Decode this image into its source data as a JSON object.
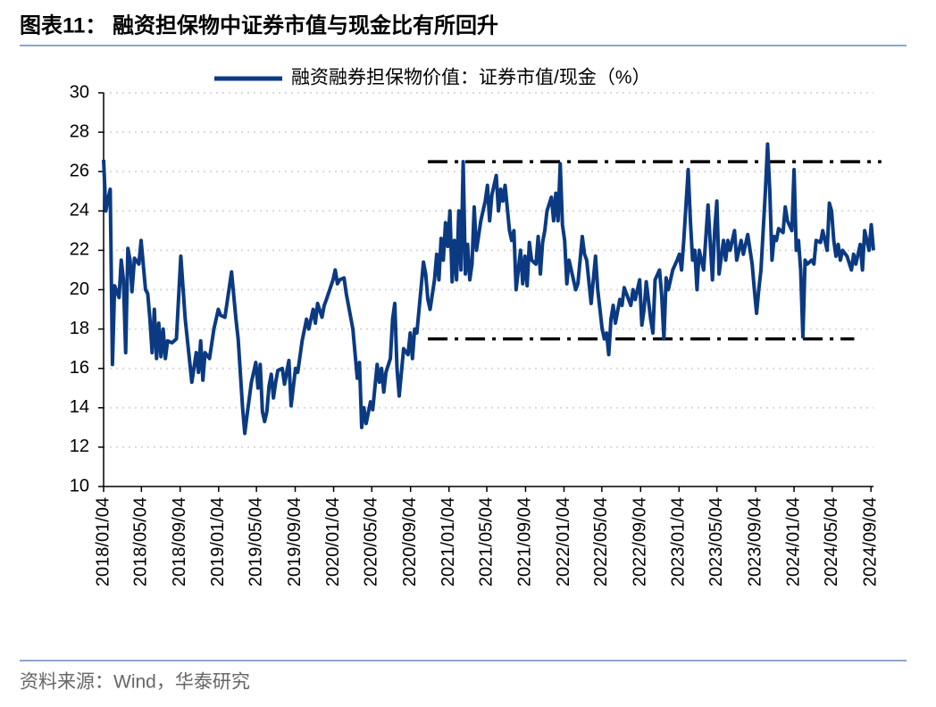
{
  "chart_data": {
    "type": "line",
    "title": "图表11：  融资担保物中证券市值与现金比有所回升",
    "source": "资料来源：Wind，华泰研究",
    "series": [
      {
        "name": "融资融券担保物价值：证券市值/现金（%）",
        "color": "#0b3a82",
        "values": [
          26.6,
          24.0,
          24.6,
          25.1,
          16.2,
          20.2,
          19.6,
          21.5,
          20.5,
          16.8,
          22.1,
          21.5,
          19.9,
          21.6,
          21.3,
          22.5,
          20.0,
          19.8,
          18.5,
          16.8,
          19.0,
          16.5,
          18.3,
          16.6,
          18.0,
          16.5,
          17.4,
          17.3,
          17.5,
          21.7,
          18.5,
          15.3,
          16.8,
          15.8,
          17.4,
          15.4,
          16.8,
          16.5,
          18.0,
          19.0,
          18.7,
          18.6,
          20.9,
          18.5,
          17.5,
          14.0,
          12.7,
          13.6,
          15.3,
          16.3,
          15.0,
          16.2,
          13.8,
          13.3,
          13.8,
          15.1,
          15.7,
          14.5,
          15.3,
          15.9,
          16.0,
          15.2,
          16.4,
          14.1,
          16.0,
          15.8,
          17.4,
          18.5,
          18.0,
          19.0,
          18.3,
          19.3,
          18.6,
          19.2,
          19.5,
          20.5,
          21.0,
          20.3,
          20.5,
          20.6,
          19.8,
          18.0,
          15.5,
          16.3,
          13.0,
          14.0,
          13.2,
          14.3,
          13.9,
          16.2,
          15.3,
          16.0,
          14.8,
          15.8,
          16.5,
          18.5,
          19.3,
          16.0,
          14.6,
          17.0,
          16.7,
          17.8,
          16.5,
          18.0,
          17.8,
          21.4,
          20.8,
          19.5,
          19.0,
          20.5,
          21.8,
          20.5,
          22.6,
          21.5,
          23.4,
          22.2,
          24.0,
          20.4,
          22.5,
          20.5,
          24.0,
          21.0,
          26.5,
          20.8,
          22.3,
          20.5,
          21.3,
          24.2,
          22.0,
          23.5,
          24.5,
          25.3,
          23.5,
          24.8,
          25.8,
          24.0,
          25.1,
          24.5,
          25.3,
          23.0,
          22.5,
          23.0,
          20.0,
          21.0,
          22.0,
          20.3,
          21.7,
          20.2,
          22.4,
          21.5,
          21.3,
          22.7,
          20.8,
          22.4,
          23.0,
          24.0,
          24.7,
          23.5,
          24.9,
          23.5,
          26.4,
          23.3,
          22.5,
          20.3,
          21.5,
          20.0,
          20.3,
          22.7,
          21.8,
          21.5,
          19.3,
          21.7,
          20.0,
          18.0,
          17.5,
          17.8,
          16.7,
          18.5,
          19.2,
          18.3,
          19.5,
          19.2,
          20.1,
          19.8,
          19.2,
          20.0,
          19.5,
          20.5,
          18.2,
          19.0,
          20.4,
          18.5,
          17.8,
          20.5,
          21.0,
          19.7,
          17.5,
          20.6,
          20.0,
          21.0,
          21.5,
          21.8,
          21.0,
          22.5,
          26.1,
          23.5,
          21.5,
          22.0,
          20.0,
          22.0,
          21.0,
          24.3,
          20.5,
          23.0,
          24.5,
          20.8,
          22.5,
          21.5,
          22.5,
          22.0,
          23.0,
          21.5,
          22.5,
          21.8,
          22.8,
          21.3,
          20.0,
          18.8,
          20.0,
          21.0,
          25.0,
          27.4,
          25.0,
          21.5,
          22.7,
          22.5,
          23.1,
          22.9,
          24.2,
          23.5,
          23.0,
          26.1,
          22.0,
          22.5,
          21.0,
          17.6,
          21.5,
          21.3,
          21.5,
          21.3,
          22.5,
          22.4,
          23.0,
          22.0,
          24.4,
          24.0,
          22.5,
          21.7,
          22.3,
          21.5,
          22.0,
          21.7,
          21.0,
          21.8,
          21.3,
          22.3,
          21.0,
          23.0,
          22.0,
          23.3,
          22.0
        ]
      }
    ],
    "x": [
      "2018/01/04",
      "2018/01/11",
      "2018/01/18",
      "2018/01/25",
      "2018/02/01",
      "2018/02/08",
      "2018/02/22",
      "2018/03/01",
      "2018/03/08",
      "2018/03/15",
      "2018/03/22",
      "2018/03/29",
      "2018/04/04",
      "2018/04/12",
      "2018/04/26",
      "2018/05/03",
      "2018/05/17",
      "2018/05/24",
      "2018/05/31",
      "2018/06/07",
      "2018/06/14",
      "2018/06/21",
      "2018/06/28",
      "2018/07/05",
      "2018/07/12",
      "2018/07/19",
      "2018/07/26",
      "2018/08/09",
      "2018/08/23",
      "2018/09/06",
      "2018/09/20",
      "2018/10/11",
      "2018/10/25",
      "2018/11/01",
      "2018/11/08",
      "2018/11/15",
      "2018/11/22",
      "2018/12/06",
      "2018/12/20",
      "2019/01/03",
      "2019/01/10",
      "2019/01/24",
      "2019/02/14",
      "2019/02/28",
      "2019/03/07",
      "2019/03/21",
      "2019/03/28",
      "2019/04/04",
      "2019/04/18",
      "2019/05/02",
      "2019/05/09",
      "2019/05/16",
      "2019/05/23",
      "2019/05/30",
      "2019/06/06",
      "2019/06/13",
      "2019/06/20",
      "2019/06/27",
      "2019/07/04",
      "2019/07/11",
      "2019/07/25",
      "2019/08/01",
      "2019/08/15",
      "2019/08/22",
      "2019/09/05",
      "2019/09/12",
      "2019/09/26",
      "2019/10/10",
      "2019/10/17",
      "2019/10/31",
      "2019/11/07",
      "2019/11/14",
      "2019/11/28",
      "2019/12/05",
      "2019/12/12",
      "2020/01/02",
      "2020/01/09",
      "2020/01/16",
      "2020/01/23",
      "2020/02/06",
      "2020/02/13",
      "2020/03/05",
      "2020/03/19",
      "2020/03/26",
      "2020/04/02",
      "2020/04/09",
      "2020/04/16",
      "2020/04/30",
      "2020/05/07",
      "2020/05/21",
      "2020/05/28",
      "2020/06/04",
      "2020/06/11",
      "2020/06/18",
      "2020/07/02",
      "2020/07/09",
      "2020/07/16",
      "2020/07/23",
      "2020/07/30",
      "2020/08/13",
      "2020/08/27",
      "2020/09/03",
      "2020/09/10",
      "2020/09/17",
      "2020/09/24",
      "2020/10/15",
      "2020/10/22",
      "2020/10/29",
      "2020/11/05",
      "2020/11/19",
      "2020/11/26",
      "2020/12/03",
      "2020/12/10",
      "2020/12/17",
      "2020/12/24",
      "2020/12/31",
      "2021/01/07",
      "2021/01/14",
      "2021/01/21",
      "2021/01/28",
      "2021/02/04",
      "2021/02/11",
      "2021/02/18",
      "2021/02/25",
      "2021/03/04",
      "2021/03/11",
      "2021/03/18",
      "2021/03/25",
      "2021/04/01",
      "2021/04/15",
      "2021/04/29",
      "2021/05/06",
      "2021/05/13",
      "2021/05/20",
      "2021/06/03",
      "2021/06/10",
      "2021/06/17",
      "2021/06/24",
      "2021/07/01",
      "2021/07/15",
      "2021/07/22",
      "2021/07/29",
      "2021/08/05",
      "2021/08/12",
      "2021/08/19",
      "2021/08/26",
      "2021/09/02",
      "2021/09/09",
      "2021/09/16",
      "2021/09/23",
      "2021/10/07",
      "2021/10/14",
      "2021/10/21",
      "2021/10/28",
      "2021/11/04",
      "2021/11/11",
      "2021/11/25",
      "2021/12/02",
      "2021/12/09",
      "2021/12/16",
      "2021/12/23",
      "2021/12/30",
      "2022/01/06",
      "2022/01/13",
      "2022/01/20",
      "2022/02/10",
      "2022/02/17",
      "2022/03/03",
      "2022/03/10",
      "2022/03/17",
      "2022/03/31",
      "2022/04/14",
      "2022/04/21",
      "2022/05/05",
      "2022/05/12",
      "2022/05/19",
      "2022/05/26",
      "2022/06/02",
      "2022/06/09",
      "2022/06/16",
      "2022/06/30",
      "2022/07/07",
      "2022/07/14",
      "2022/07/21",
      "2022/08/04",
      "2022/08/11",
      "2022/08/18",
      "2022/09/01",
      "2022/09/08",
      "2022/09/15",
      "2022/09/22",
      "2022/10/06",
      "2022/10/13",
      "2022/10/20",
      "2022/11/03",
      "2022/11/10",
      "2022/11/17",
      "2022/11/24",
      "2022/12/01",
      "2022/12/15",
      "2022/12/29",
      "2023/01/05",
      "2023/01/12",
      "2023/01/19",
      "2023/02/02",
      "2023/02/09",
      "2023/02/16",
      "2023/02/23",
      "2023/03/02",
      "2023/03/09",
      "2023/03/23",
      "2023/04/06",
      "2023/04/20",
      "2023/04/27",
      "2023/05/04",
      "2023/05/11",
      "2023/05/25",
      "2023/06/01",
      "2023/06/08",
      "2023/06/15",
      "2023/06/29",
      "2023/07/06",
      "2023/07/20",
      "2023/07/27",
      "2023/08/10",
      "2023/08/24",
      "2023/08/31",
      "2023/09/07",
      "2023/09/14",
      "2023/09/21",
      "2023/10/05",
      "2023/10/12",
      "2023/10/19",
      "2023/10/26",
      "2023/11/02",
      "2023/11/09",
      "2023/11/16",
      "2023/11/30",
      "2023/12/07",
      "2023/12/14",
      "2023/12/28",
      "2024/01/04",
      "2024/01/11",
      "2024/01/18",
      "2024/01/25",
      "2024/02/01",
      "2024/02/08",
      "2024/02/15",
      "2024/02/29",
      "2024/03/07",
      "2024/03/14",
      "2024/03/28",
      "2024/04/04",
      "2024/04/18",
      "2024/04/25",
      "2024/05/02",
      "2024/05/09",
      "2024/05/16",
      "2024/05/23",
      "2024/05/30",
      "2024/06/06",
      "2024/06/20",
      "2024/07/04",
      "2024/07/11",
      "2024/07/18",
      "2024/08/01",
      "2024/08/08",
      "2024/08/15",
      "2024/08/29",
      "2024/09/05",
      "2024/09/12"
    ],
    "xlim": [
      "2018/01/04",
      "2024/09/12"
    ],
    "xticks": [
      "2018/01/04",
      "2018/05/04",
      "2018/09/04",
      "2019/01/04",
      "2019/05/04",
      "2019/09/04",
      "2020/01/04",
      "2020/05/04",
      "2020/09/04",
      "2021/01/04",
      "2021/05/04",
      "2021/09/04",
      "2022/01/04",
      "2022/05/04",
      "2022/09/04",
      "2023/01/04",
      "2023/05/04",
      "2023/09/04",
      "2024/01/04",
      "2024/05/04",
      "2024/09/04"
    ],
    "ylim": [
      10,
      30
    ],
    "yticks": [
      10,
      12,
      14,
      16,
      18,
      20,
      22,
      24,
      26,
      28,
      30
    ],
    "grid": true,
    "legend": "top",
    "reference_lines": [
      {
        "value": 26.5,
        "start": "2020/10/29",
        "end": "2024/10/07"
      },
      {
        "value": 17.5,
        "start": "2020/10/29",
        "end": "2024/07/13"
      }
    ]
  }
}
